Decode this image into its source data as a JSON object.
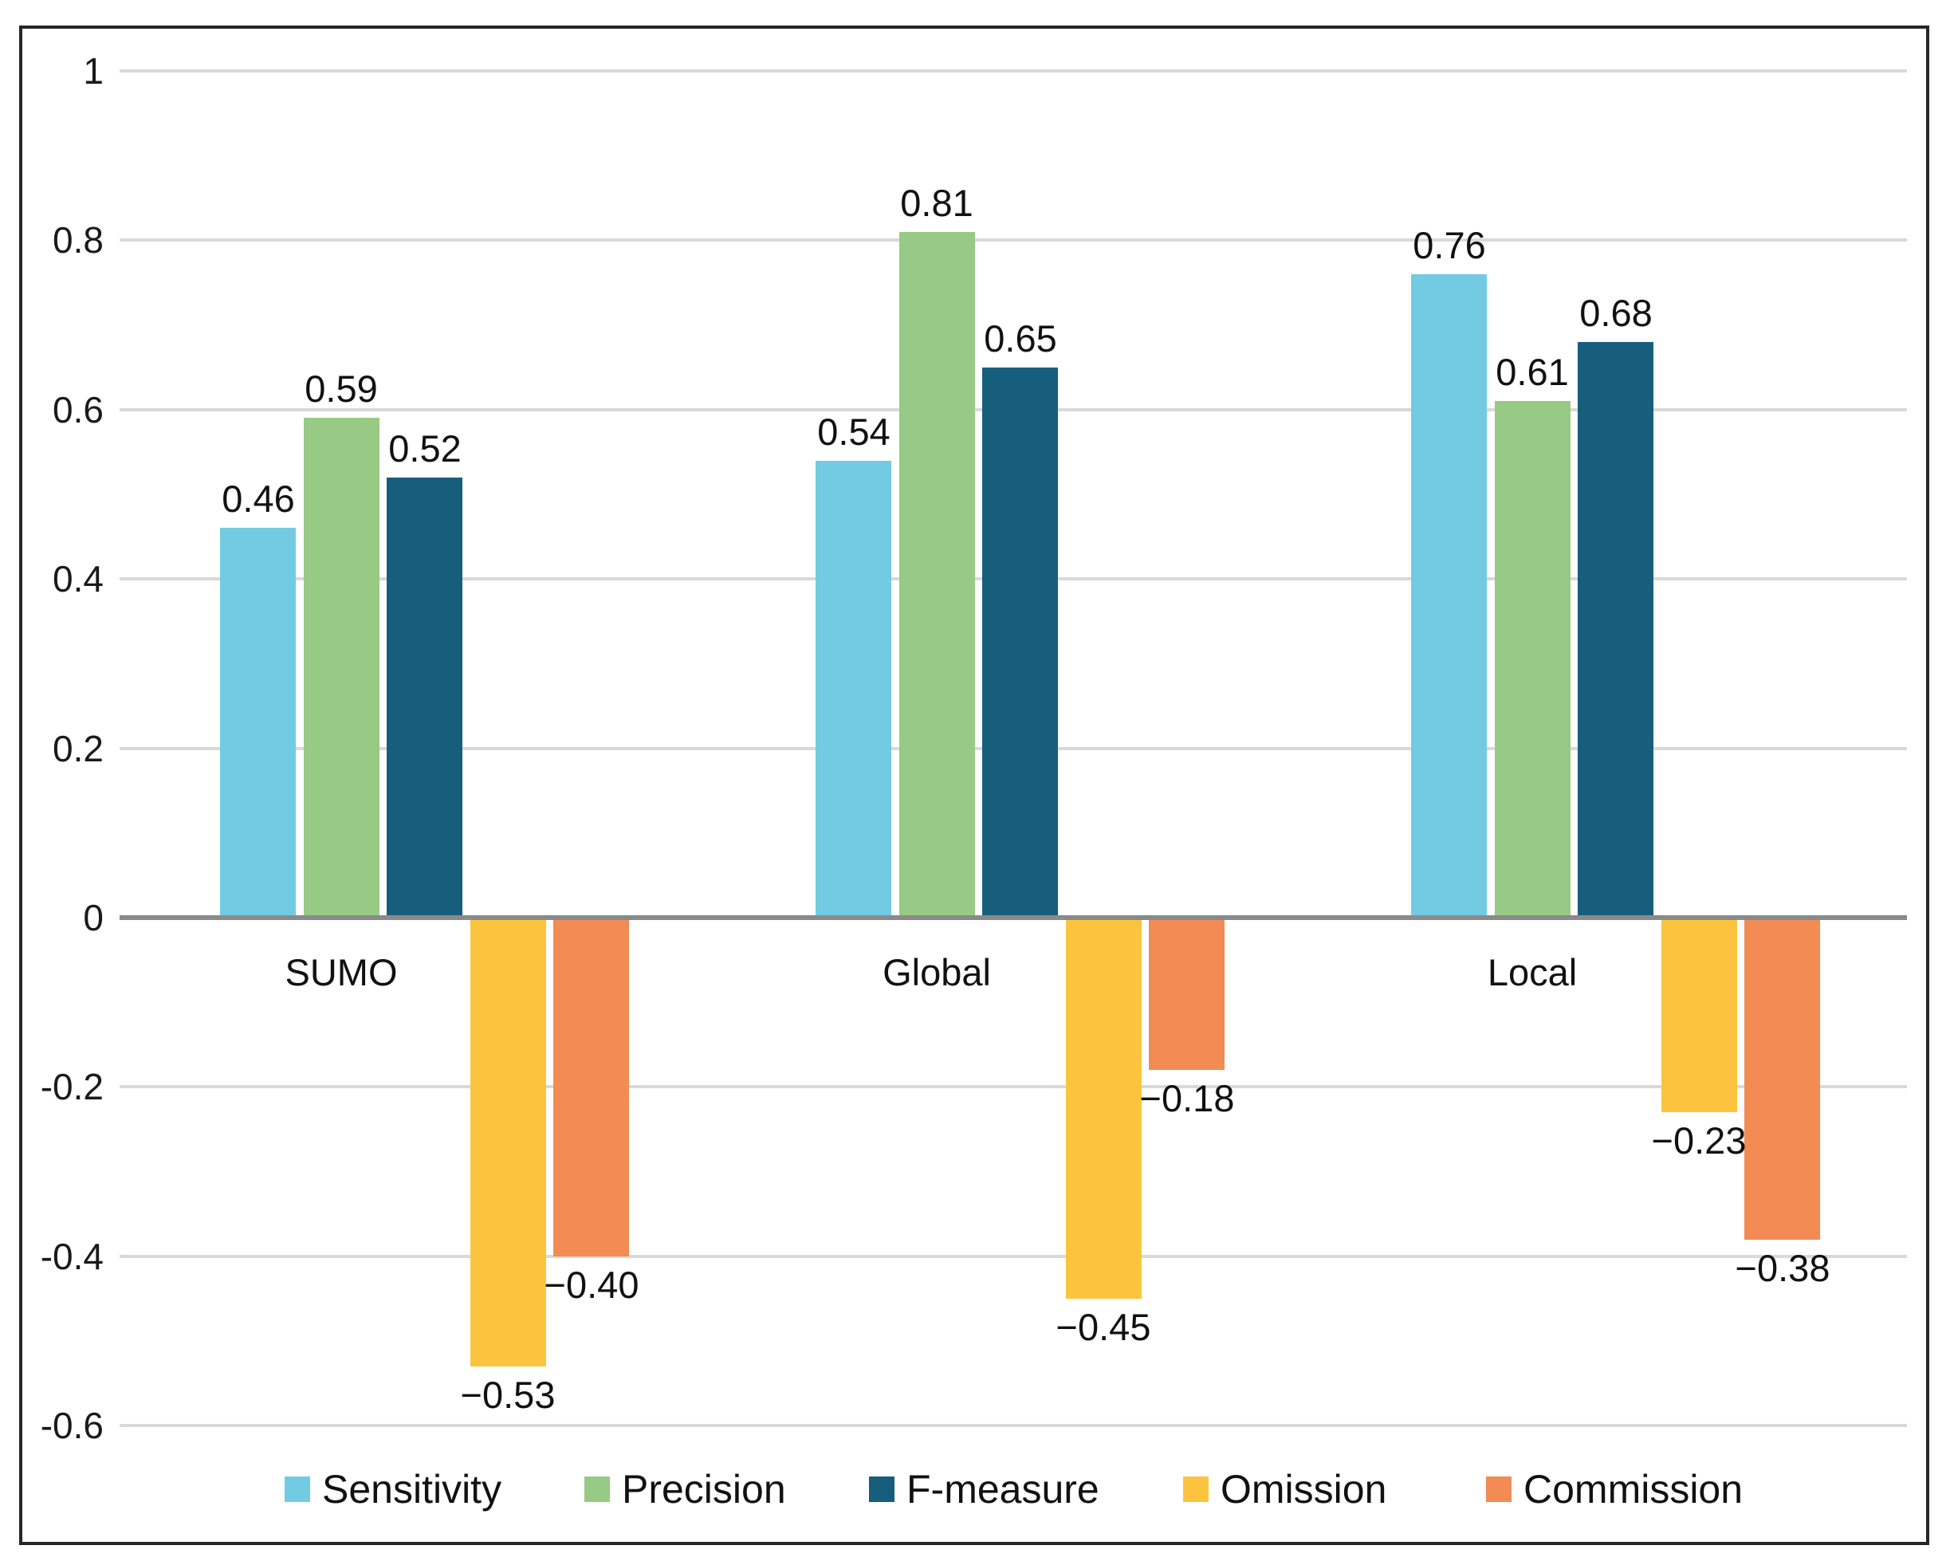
{
  "chart_data": {
    "type": "bar",
    "title": "",
    "categories": [
      "SUMO",
      "Global",
      "Local"
    ],
    "series": [
      {
        "name": "Sensitivity",
        "color": "#72CBE2",
        "values": [
          0.46,
          0.54,
          0.76
        ],
        "labels": [
          "0.46",
          "0.54",
          "0.76"
        ]
      },
      {
        "name": "Precision",
        "color": "#97CA84",
        "values": [
          0.59,
          0.81,
          0.61
        ],
        "labels": [
          "0.59",
          "0.81",
          "0.61"
        ]
      },
      {
        "name": "F-measure",
        "color": "#175E7D",
        "values": [
          0.52,
          0.65,
          0.68
        ],
        "labels": [
          "0.52",
          "0.65",
          "0.68"
        ]
      },
      {
        "name": "Omission",
        "color": "#FCC43E",
        "values": [
          -0.53,
          -0.45,
          -0.23
        ],
        "labels": [
          "−0.53",
          "−0.45",
          "−0.23"
        ]
      },
      {
        "name": "Commission",
        "color": "#F28B54",
        "values": [
          -0.4,
          -0.18,
          -0.38
        ],
        "labels": [
          "−0.40",
          "−0.18",
          "−0.38"
        ]
      }
    ],
    "y_axis": {
      "min": -0.6,
      "max": 1,
      "step": 0.2,
      "tick_values": [
        1,
        0.8,
        0.6,
        0.4,
        0.2,
        0,
        -0.2,
        -0.4,
        -0.6
      ],
      "tick_labels": [
        "1",
        "0.8",
        "0.6",
        "0.4",
        "0.2",
        "0",
        "-0.2",
        "-0.4",
        "-0.6"
      ]
    },
    "grid": true,
    "legend_position": "bottom",
    "style_colors": {
      "gridline": "#D9D9D9",
      "zero_line": "#8A8A8A",
      "frame": "#262626",
      "text": "#111111",
      "background": "#FFFFFF"
    }
  }
}
